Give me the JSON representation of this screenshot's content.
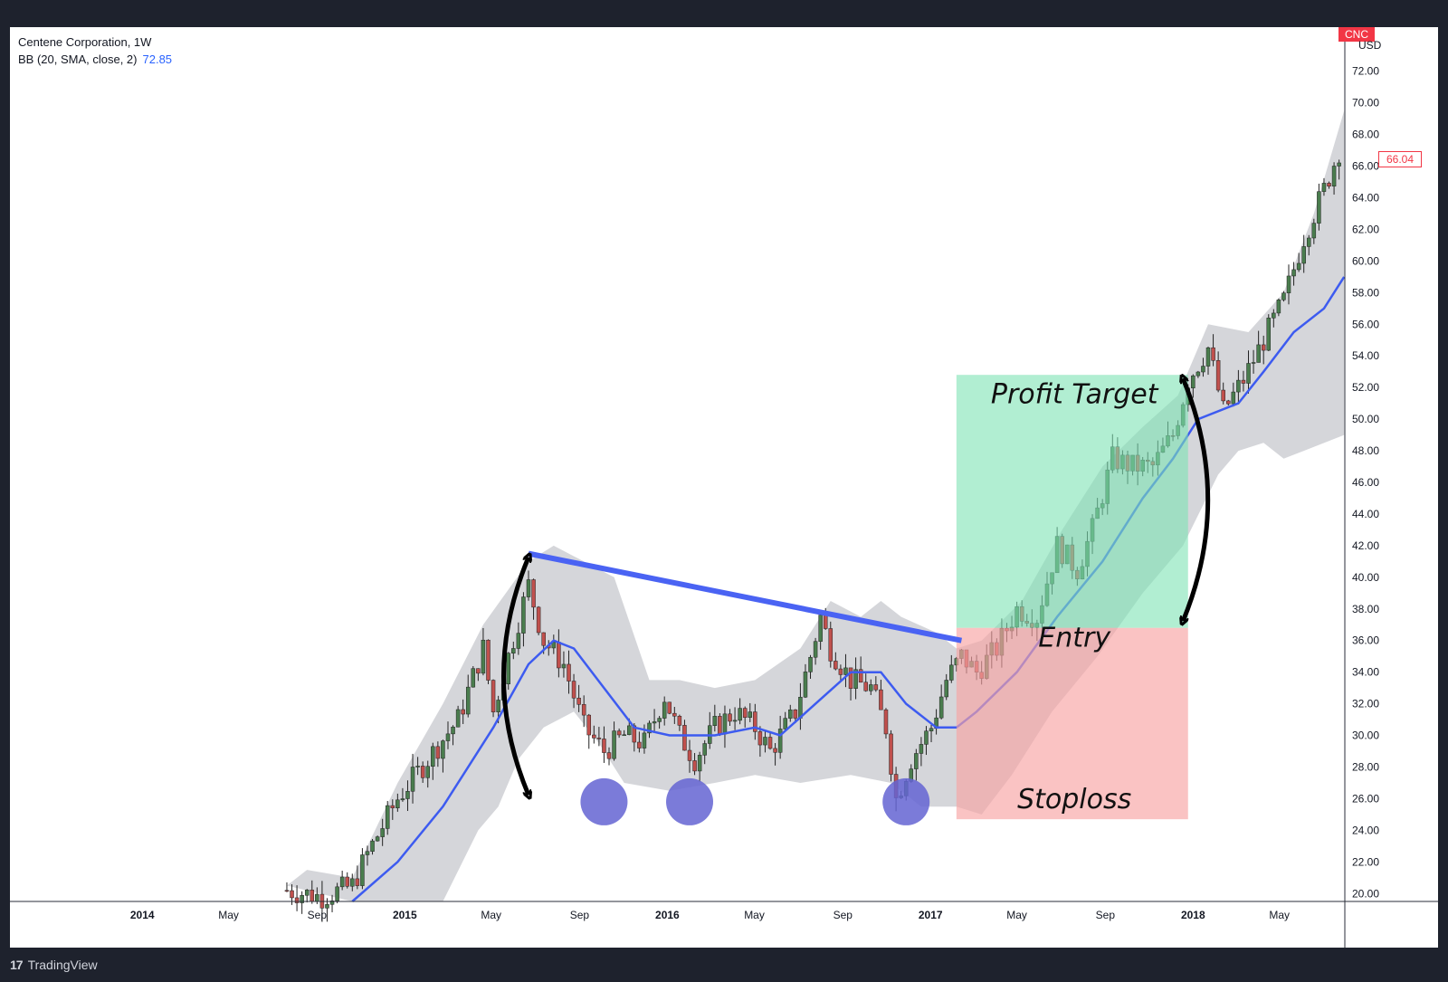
{
  "header": {
    "title": "Centene Corporation, 1W",
    "indicator": "BB (20, SMA, close, 2)",
    "indicator_value": "72.85"
  },
  "price_axis": {
    "currency": "USD",
    "ticker": "CNC",
    "last_price": "66.04"
  },
  "footer": {
    "brand": "TradingView",
    "logo_icon": "tradingview-logo-icon"
  },
  "annotations": {
    "profit_target": "Profit Target",
    "entry": "Entry",
    "stoploss": "Stoploss"
  },
  "colors": {
    "up": "#4a7d4e",
    "down": "#c0504d",
    "bb_basis": "#3d5bf0",
    "bb_band_fill": "#d5d6da",
    "trendline": "#4a63f3",
    "profit_zone": "#7de3b4",
    "stop_zone": "#f8a3a3",
    "circle": "#6464d2",
    "arrow": "#000000"
  },
  "chart_data": {
    "type": "candlestick",
    "timeframe": "1W",
    "ylim": [
      19.5,
      72.5
    ],
    "xlim": [
      "2013-07-01",
      "2018-07-31"
    ],
    "y_ticks": [
      "20.00",
      "22.00",
      "24.00",
      "26.00",
      "28.00",
      "30.00",
      "32.00",
      "34.00",
      "36.00",
      "38.00",
      "40.00",
      "42.00",
      "44.00",
      "46.00",
      "48.00",
      "50.00",
      "52.00",
      "54.00",
      "56.00",
      "58.00",
      "60.00",
      "62.00",
      "64.00",
      "66.00",
      "68.00",
      "70.00",
      "72.00"
    ],
    "x_ticks": [
      {
        "date": "2014-01-01",
        "label": "2014",
        "bold": true
      },
      {
        "date": "2014-05-01",
        "label": "May",
        "bold": false
      },
      {
        "date": "2014-09-01",
        "label": "Sep",
        "bold": false
      },
      {
        "date": "2015-01-01",
        "label": "2015",
        "bold": true
      },
      {
        "date": "2015-05-01",
        "label": "May",
        "bold": false
      },
      {
        "date": "2015-09-01",
        "label": "Sep",
        "bold": false
      },
      {
        "date": "2016-01-01",
        "label": "2016",
        "bold": true
      },
      {
        "date": "2016-05-01",
        "label": "May",
        "bold": false
      },
      {
        "date": "2016-09-01",
        "label": "Sep",
        "bold": false
      },
      {
        "date": "2017-01-01",
        "label": "2017",
        "bold": true
      },
      {
        "date": "2017-05-01",
        "label": "May",
        "bold": false
      },
      {
        "date": "2017-09-01",
        "label": "Sep",
        "bold": false
      },
      {
        "date": "2018-01-01",
        "label": "2018",
        "bold": true
      },
      {
        "date": "2018-05-01",
        "label": "May",
        "bold": false
      }
    ],
    "close_path": [
      [
        "2014-07-21",
        20.2
      ],
      [
        "2014-09-08",
        19.8
      ],
      [
        "2014-10-20",
        20.5
      ],
      [
        "2014-11-10",
        22.5
      ],
      [
        "2014-12-22",
        26.0
      ],
      [
        "2015-02-02",
        28.5
      ],
      [
        "2015-03-16",
        31.0
      ],
      [
        "2015-04-20",
        35.5
      ],
      [
        "2015-05-04",
        31.5
      ],
      [
        "2015-05-25",
        35.0
      ],
      [
        "2015-06-22",
        39.5
      ],
      [
        "2015-07-13",
        36.0
      ],
      [
        "2015-08-10",
        34.5
      ],
      [
        "2015-09-07",
        30.5
      ],
      [
        "2015-10-05",
        29.0
      ],
      [
        "2015-11-02",
        30.0
      ],
      [
        "2015-11-30",
        29.5
      ],
      [
        "2015-12-28",
        32.5
      ],
      [
        "2016-01-18",
        30.0
      ],
      [
        "2016-02-08",
        28.5
      ],
      [
        "2016-03-07",
        30.5
      ],
      [
        "2016-04-04",
        31.5
      ],
      [
        "2016-05-02",
        30.5
      ],
      [
        "2016-05-23",
        29.0
      ],
      [
        "2016-06-27",
        31.5
      ],
      [
        "2016-07-18",
        35.0
      ],
      [
        "2016-08-01",
        37.5
      ],
      [
        "2016-08-15",
        35.5
      ],
      [
        "2016-09-12",
        33.5
      ],
      [
        "2016-10-10",
        33.0
      ],
      [
        "2016-10-31",
        30.5
      ],
      [
        "2016-11-14",
        26.0
      ],
      [
        "2016-12-05",
        28.5
      ],
      [
        "2017-01-02",
        30.5
      ],
      [
        "2017-01-23",
        33.5
      ],
      [
        "2017-02-13",
        35.0
      ],
      [
        "2017-03-06",
        34.0
      ],
      [
        "2017-04-03",
        35.5
      ],
      [
        "2017-05-01",
        38.0
      ],
      [
        "2017-05-29",
        37.5
      ],
      [
        "2017-06-26",
        42.0
      ],
      [
        "2017-07-24",
        40.5
      ],
      [
        "2017-08-14",
        43.0
      ],
      [
        "2017-09-11",
        47.5
      ],
      [
        "2017-10-09",
        47.0
      ],
      [
        "2017-11-06",
        47.0
      ],
      [
        "2017-12-04",
        49.0
      ],
      [
        "2017-12-25",
        52.5
      ],
      [
        "2018-01-22",
        54.5
      ],
      [
        "2018-02-12",
        50.5
      ],
      [
        "2018-03-12",
        52.5
      ],
      [
        "2018-04-09",
        55.0
      ],
      [
        "2018-05-07",
        57.5
      ],
      [
        "2018-06-04",
        61.5
      ],
      [
        "2018-07-02",
        64.5
      ],
      [
        "2018-07-23",
        67.0
      ]
    ],
    "bb_basis": [
      [
        "2014-10-20",
        19.5
      ],
      [
        "2014-12-22",
        22.0
      ],
      [
        "2015-02-23",
        25.5
      ],
      [
        "2015-05-04",
        30.5
      ],
      [
        "2015-06-22",
        34.5
      ],
      [
        "2015-07-27",
        36.0
      ],
      [
        "2015-08-24",
        35.5
      ],
      [
        "2015-10-05",
        33.0
      ],
      [
        "2015-11-16",
        30.5
      ],
      [
        "2016-01-04",
        30.0
      ],
      [
        "2016-03-07",
        30.0
      ],
      [
        "2016-05-02",
        30.5
      ],
      [
        "2016-06-06",
        30.0
      ],
      [
        "2016-07-25",
        32.0
      ],
      [
        "2016-09-12",
        34.0
      ],
      [
        "2016-10-24",
        34.0
      ],
      [
        "2016-11-28",
        32.0
      ],
      [
        "2017-01-09",
        30.5
      ],
      [
        "2017-02-06",
        30.5
      ],
      [
        "2017-03-06",
        31.5
      ],
      [
        "2017-05-01",
        34.0
      ],
      [
        "2017-06-26",
        37.5
      ],
      [
        "2017-08-28",
        41.0
      ],
      [
        "2017-10-23",
        45.0
      ],
      [
        "2017-12-04",
        47.5
      ],
      [
        "2018-01-08",
        50.0
      ],
      [
        "2018-03-05",
        51.0
      ],
      [
        "2018-04-09",
        53.0
      ],
      [
        "2018-05-21",
        55.5
      ],
      [
        "2018-07-02",
        57.0
      ],
      [
        "2018-07-30",
        59.0
      ]
    ],
    "bb_upper": [
      [
        "2014-07-21",
        20.5
      ],
      [
        "2014-08-18",
        21.5
      ],
      [
        "2014-10-20",
        21.0
      ],
      [
        "2014-12-22",
        27.0
      ],
      [
        "2015-02-23",
        32.0
      ],
      [
        "2015-04-20",
        37.0
      ],
      [
        "2015-06-22",
        41.0
      ],
      [
        "2015-07-27",
        42.0
      ],
      [
        "2015-09-07",
        41.0
      ],
      [
        "2015-10-19",
        40.0
      ],
      [
        "2015-12-07",
        33.5
      ],
      [
        "2016-01-18",
        33.5
      ],
      [
        "2016-03-07",
        33.0
      ],
      [
        "2016-05-02",
        33.5
      ],
      [
        "2016-07-04",
        35.5
      ],
      [
        "2016-08-15",
        38.5
      ],
      [
        "2016-09-26",
        37.5
      ],
      [
        "2016-10-24",
        38.5
      ],
      [
        "2016-11-21",
        37.5
      ],
      [
        "2017-01-09",
        36.5
      ],
      [
        "2017-02-06",
        35.5
      ],
      [
        "2017-03-13",
        36.0
      ],
      [
        "2017-05-08",
        38.5
      ],
      [
        "2017-07-03",
        43.0
      ],
      [
        "2017-08-28",
        47.0
      ],
      [
        "2017-10-23",
        49.5
      ],
      [
        "2017-12-11",
        51.5
      ],
      [
        "2018-01-22",
        56.0
      ],
      [
        "2018-03-19",
        55.5
      ],
      [
        "2018-05-07",
        58.0
      ],
      [
        "2018-06-18",
        63.0
      ],
      [
        "2018-07-30",
        69.5
      ]
    ],
    "bb_lower": [
      [
        "2014-10-20",
        19.5
      ],
      [
        "2015-02-23",
        19.5
      ],
      [
        "2015-04-13",
        24.0
      ],
      [
        "2015-05-11",
        25.5
      ],
      [
        "2015-06-08",
        28.5
      ],
      [
        "2015-07-13",
        30.5
      ],
      [
        "2015-08-24",
        31.5
      ],
      [
        "2015-09-28",
        29.5
      ],
      [
        "2015-11-02",
        27.0
      ],
      [
        "2016-01-04",
        26.5
      ],
      [
        "2016-03-07",
        27.0
      ],
      [
        "2016-05-02",
        27.5
      ],
      [
        "2016-07-04",
        27.0
      ],
      [
        "2016-09-12",
        27.5
      ],
      [
        "2016-11-07",
        27.0
      ],
      [
        "2016-12-19",
        25.5
      ],
      [
        "2017-02-06",
        25.5
      ],
      [
        "2017-03-13",
        25.0
      ],
      [
        "2017-04-24",
        27.5
      ],
      [
        "2017-06-19",
        31.5
      ],
      [
        "2017-08-21",
        35.0
      ],
      [
        "2017-10-23",
        39.0
      ],
      [
        "2017-12-18",
        42.0
      ],
      [
        "2018-02-05",
        46.5
      ],
      [
        "2018-03-05",
        48.0
      ],
      [
        "2018-04-09",
        48.5
      ],
      [
        "2018-05-07",
        47.5
      ],
      [
        "2018-06-04",
        48.0
      ],
      [
        "2018-07-30",
        49.0
      ]
    ],
    "trendline": [
      [
        "2015-06-22",
        41.5
      ],
      [
        "2017-02-13",
        36.0
      ]
    ],
    "zones": {
      "x_range": [
        "2017-02-06",
        "2017-12-25"
      ],
      "profit": [
        36.8,
        52.8
      ],
      "stop": [
        24.7,
        36.8
      ]
    },
    "circles": [
      {
        "date": "2015-10-05",
        "price": 25.8
      },
      {
        "date": "2016-02-01",
        "price": 25.8
      },
      {
        "date": "2016-11-28",
        "price": 25.8
      }
    ],
    "arrows": [
      {
        "from": [
          "2015-06-22",
          41.5
        ],
        "to": [
          "2015-06-22",
          26.0
        ],
        "bend": -1
      },
      {
        "from": [
          "2017-12-18",
          52.8
        ],
        "to": [
          "2017-12-18",
          37.0
        ],
        "bend": 1
      }
    ]
  }
}
